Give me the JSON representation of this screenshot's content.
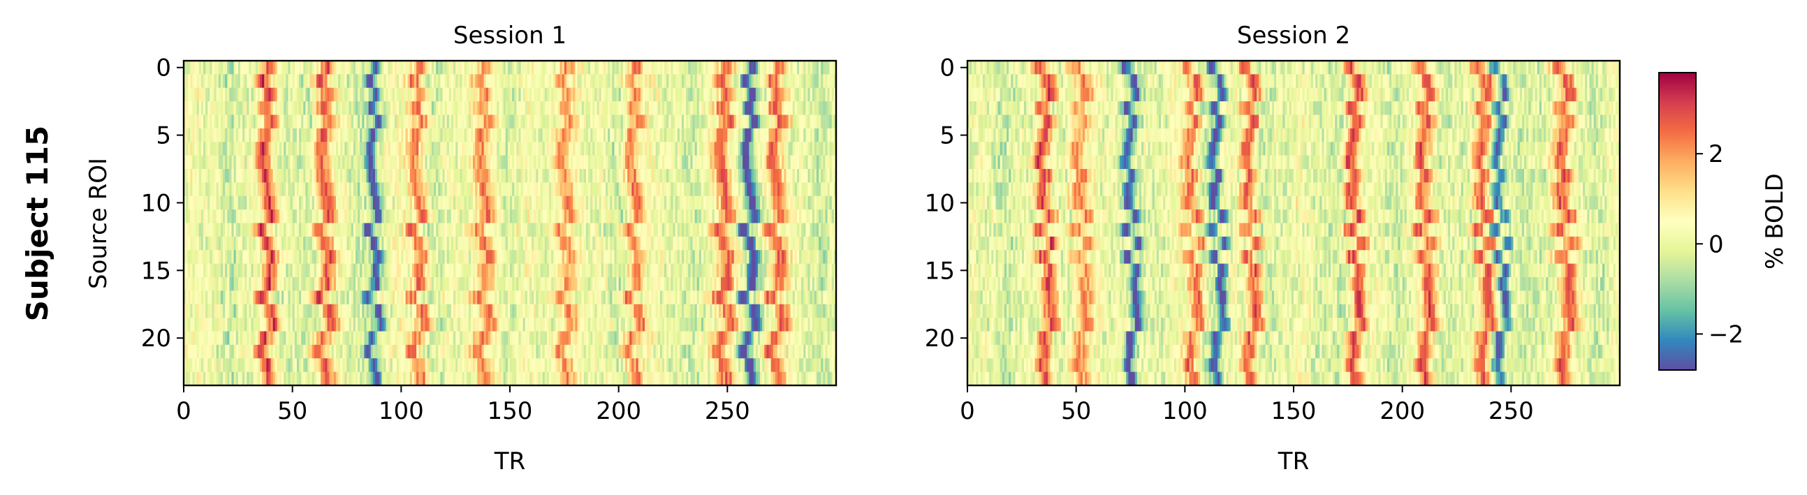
{
  "figure": {
    "row_label": "Subject 115"
  },
  "chart_data": [
    {
      "type": "heatmap",
      "title": "Session 1",
      "xlabel": "TR",
      "ylabel": "Source ROI",
      "x_range": [
        0,
        300
      ],
      "y_range": [
        0,
        24
      ],
      "x_ticks": [
        0,
        50,
        100,
        150,
        200,
        250
      ],
      "y_ticks": [
        0,
        5,
        10,
        15,
        20
      ],
      "n_rois": 24,
      "n_trs": 300,
      "grid": false,
      "peaks_TR": [
        38,
        65,
        107,
        138,
        175,
        207,
        248,
        272
      ],
      "troughs_TR": [
        87,
        260
      ]
    },
    {
      "type": "heatmap",
      "title": "Session 2",
      "xlabel": "TR",
      "ylabel": "",
      "x_range": [
        0,
        300
      ],
      "y_range": [
        0,
        24
      ],
      "x_ticks": [
        0,
        50,
        100,
        150,
        200,
        250
      ],
      "y_ticks": [
        0,
        5,
        10,
        15,
        20
      ],
      "n_rois": 24,
      "n_trs": 300,
      "grid": false,
      "peaks_TR": [
        36,
        52,
        103,
        130,
        178,
        210,
        237,
        275
      ],
      "troughs_TR": [
        75,
        115,
        245
      ]
    }
  ],
  "colorbar": {
    "label": "% BOLD",
    "colormap": "Spectral_r",
    "range": [
      -2.8,
      3.8
    ],
    "ticks": [
      -2,
      0,
      2
    ],
    "tick_labels": [
      "−2",
      "0",
      "2"
    ]
  },
  "colors": {
    "spectral_r": [
      "#5e4fa2",
      "#3288bd",
      "#66c2a5",
      "#abdda4",
      "#e6f598",
      "#ffffbf",
      "#fee08b",
      "#fdae61",
      "#f46d43",
      "#d53e4f",
      "#9e0142"
    ]
  }
}
